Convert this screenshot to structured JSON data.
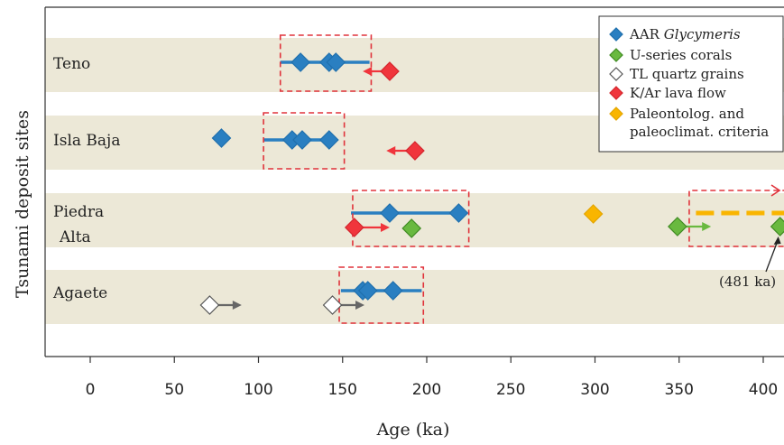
{
  "chart_data": {
    "type": "scatter",
    "xlabel": "Age (ka)",
    "ylabel": "Tsunami deposit sites",
    "xlim": [
      -27,
      414
    ],
    "xticks": [
      0,
      50,
      100,
      150,
      200,
      250,
      300,
      350,
      400
    ],
    "grid": false,
    "legend_position": "top-right",
    "colors": {
      "band": "#ece8d7",
      "aar": "#2a7fc1",
      "useries": "#69b93f",
      "tl": "#ffffff",
      "kar": "#f0353c",
      "paleo": "#f9b500",
      "box": "#e0333b",
      "arrow_grey": "#666666"
    },
    "categories": [
      {
        "label_lines": [
          "Teno"
        ]
      },
      {
        "label_lines": [
          "Isla Baja"
        ]
      },
      {
        "label_lines": [
          "Piedra",
          "Alta"
        ]
      },
      {
        "label_lines": [
          "Agaete"
        ]
      }
    ],
    "legend": [
      {
        "series": "aar",
        "text": "AAR ",
        "text_italic": "Glycymeris"
      },
      {
        "series": "useries",
        "text": "U-series corals",
        "text_italic": ""
      },
      {
        "series": "tl",
        "text": "TL quartz grains",
        "text_italic": ""
      },
      {
        "series": "kar",
        "text": "K/Ar lava flow",
        "text_italic": ""
      },
      {
        "series": "paleo",
        "text": "Paleontolog. and",
        "text_italic": "",
        "text2": "paleoclimat. criteria"
      }
    ],
    "ranges": [
      {
        "site": 0,
        "from": 113,
        "to": 166,
        "series": "aar"
      },
      {
        "site": 1,
        "from": 103,
        "to": 143,
        "series": "aar"
      },
      {
        "site": 2,
        "from": 155,
        "to": 219,
        "series": "aar"
      },
      {
        "site": 3,
        "from": 149,
        "to": 197,
        "series": "aar"
      }
    ],
    "boxes": [
      {
        "site": 0,
        "from": 113,
        "to": 167
      },
      {
        "site": 1,
        "from": 103,
        "to": 151
      },
      {
        "site": 2,
        "from": 156,
        "to": 225
      },
      {
        "site": 2,
        "from": 356,
        "to": 420,
        "open_right": true
      },
      {
        "site": 3,
        "from": 148,
        "to": 198
      }
    ],
    "points": [
      {
        "site": 0,
        "x": 125,
        "dy": 0,
        "series": "aar"
      },
      {
        "site": 0,
        "x": 142,
        "dy": 0,
        "series": "aar"
      },
      {
        "site": 0,
        "x": 146,
        "dy": 0,
        "series": "aar"
      },
      {
        "site": 0,
        "x": 178,
        "dy": 10,
        "series": "kar",
        "arrow": "left",
        "arrow_to": 162
      },
      {
        "site": 1,
        "x": 78,
        "dy": -2,
        "series": "aar"
      },
      {
        "site": 1,
        "x": 120,
        "dy": 0,
        "series": "aar"
      },
      {
        "site": 1,
        "x": 126,
        "dy": 0,
        "series": "aar"
      },
      {
        "site": 1,
        "x": 142,
        "dy": 0,
        "series": "aar"
      },
      {
        "site": 1,
        "x": 193,
        "dy": 12,
        "series": "kar",
        "arrow": "left",
        "arrow_to": 176
      },
      {
        "site": 2,
        "x": 178,
        "dy": -5,
        "series": "aar"
      },
      {
        "site": 2,
        "x": 219,
        "dy": -5,
        "series": "aar"
      },
      {
        "site": 2,
        "x": 157,
        "dy": 11,
        "series": "kar",
        "arrow": "right",
        "arrow_to": 178
      },
      {
        "site": 2,
        "x": 191,
        "dy": 12,
        "series": "useries"
      },
      {
        "site": 2,
        "x": 299,
        "dy": -4,
        "series": "paleo"
      },
      {
        "site": 2,
        "x": 349,
        "dy": 10,
        "series": "useries",
        "arrow": "right",
        "arrow_to": 369
      },
      {
        "site": 2,
        "x": 410,
        "dy": 10,
        "series": "useries"
      },
      {
        "site": 3,
        "x": 162,
        "dy": -4,
        "series": "aar"
      },
      {
        "site": 3,
        "x": 165,
        "dy": -4,
        "series": "aar"
      },
      {
        "site": 3,
        "x": 180,
        "dy": -4,
        "series": "aar"
      },
      {
        "site": 3,
        "x": 71,
        "dy": 12,
        "series": "tl",
        "arrow": "right",
        "arrow_to": 90
      },
      {
        "site": 3,
        "x": 144,
        "dy": 12,
        "series": "tl",
        "arrow": "right",
        "arrow_to": 163
      }
    ],
    "dashed_range": {
      "site": 2,
      "from": 360,
      "to": 414,
      "dy": -5,
      "series": "paleo"
    },
    "annotation": {
      "text": "(481 ka)",
      "site": 3,
      "x": 397,
      "dy": -8,
      "target_x": 410,
      "target_site": 2,
      "target_dy": 10
    }
  }
}
